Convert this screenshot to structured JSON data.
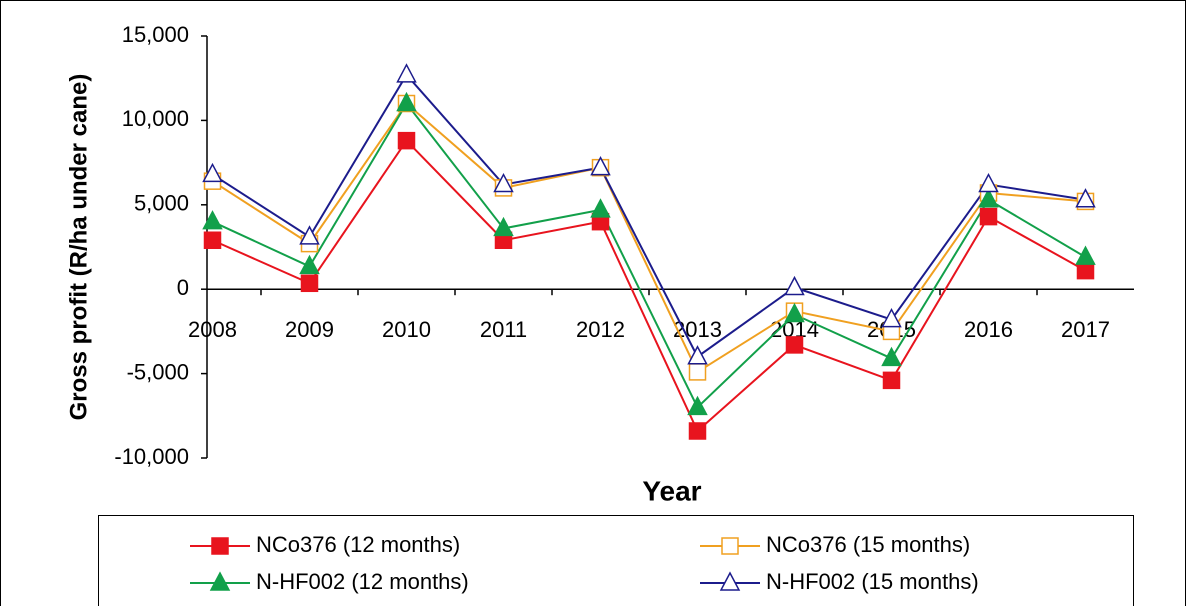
{
  "chart_data": {
    "type": "line",
    "x_label": "Year",
    "y_label": "Gross profit (R/ha under cane)",
    "categories": [
      "2008",
      "2009",
      "2010",
      "2011",
      "2012",
      "2013",
      "2014",
      "2015",
      "2016",
      "2017"
    ],
    "series": [
      {
        "name": "NCo376 (12 months)",
        "color": "#e8141e",
        "marker": "square",
        "filled": true,
        "values": [
          2900,
          350,
          8800,
          2900,
          4000,
          -8400,
          -3300,
          -5400,
          4300,
          1100
        ]
      },
      {
        "name": "NCo376 (15 months)",
        "color": "#f0a020",
        "marker": "square",
        "filled": false,
        "values": [
          6400,
          2700,
          11000,
          6000,
          7200,
          -4900,
          -1300,
          -2500,
          5700,
          5200
        ]
      },
      {
        "name": "N-HF002 (12 months)",
        "color": "#12a04a",
        "marker": "triangle",
        "filled": true,
        "values": [
          4000,
          1350,
          11000,
          3600,
          4700,
          -7000,
          -1500,
          -4100,
          5300,
          1900
        ]
      },
      {
        "name": "N-HF002 (15 months)",
        "color": "#1c1c8c",
        "marker": "triangle",
        "filled": false,
        "values": [
          6800,
          3100,
          12700,
          6200,
          7200,
          -4000,
          100,
          -1800,
          6200,
          5300
        ]
      }
    ],
    "ylim": [
      -10000,
      15000
    ],
    "yticks": [
      {
        "value": -10000,
        "label": "-10,000"
      },
      {
        "value": -5000,
        "label": "-5,000"
      },
      0,
      {
        "value": 5000,
        "label": "5,000"
      },
      {
        "value": 10000,
        "label": "10,000"
      },
      {
        "value": 15000,
        "label": "15,000"
      }
    ],
    "grid": false,
    "legend": "bottom"
  }
}
